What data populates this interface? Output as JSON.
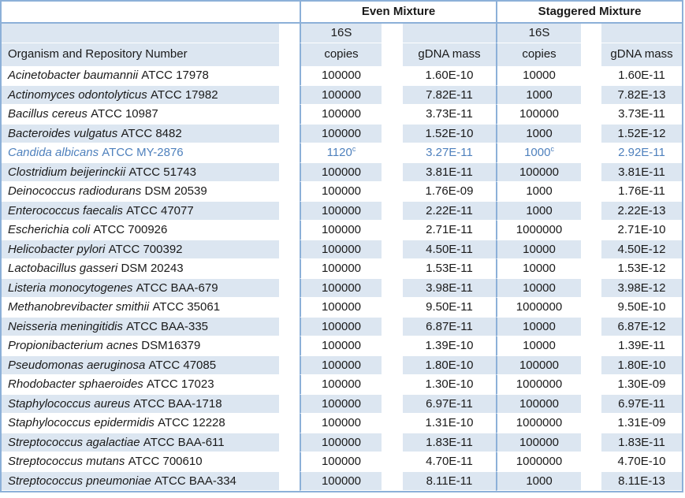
{
  "colors": {
    "border": "#8cb0d8",
    "row_alt": "#dce6f1",
    "highlight_text": "#4f81bd",
    "text": "#1a1a1a"
  },
  "table": {
    "groups": {
      "even": "Even Mixture",
      "staggered": "Staggered Mixture"
    },
    "sub": {
      "s16": "16S",
      "copies": "copies",
      "gdna": "gDNA mass"
    },
    "organism_header": "Organism and Repository Number",
    "footnote_marker": "c",
    "rows": [
      {
        "species": "Acinetobacter baumannii",
        "repo": "ATCC 17978",
        "even_copies": "100000",
        "even_gdna": "1.60E-10",
        "stag_copies": "10000",
        "stag_gdna": "1.60E-11"
      },
      {
        "species": "Actinomyces odontolyticus",
        "repo": "ATCC 17982",
        "even_copies": "100000",
        "even_gdna": "7.82E-11",
        "stag_copies": "1000",
        "stag_gdna": "7.82E-13"
      },
      {
        "species": "Bacillus cereus",
        "repo": "ATCC 10987",
        "even_copies": "100000",
        "even_gdna": "3.73E-11",
        "stag_copies": "100000",
        "stag_gdna": "3.73E-11"
      },
      {
        "species": "Bacteroides vulgatus",
        "repo": "ATCC 8482",
        "even_copies": "100000",
        "even_gdna": "1.52E-10",
        "stag_copies": "1000",
        "stag_gdna": "1.52E-12"
      },
      {
        "species": "Candida albicans",
        "repo": "ATCC MY-2876",
        "even_copies": "1120",
        "even_sup": "c",
        "even_gdna": "3.27E-11",
        "stag_copies": "1000",
        "stag_sup": "c",
        "stag_gdna": "2.92E-11",
        "highlight": true
      },
      {
        "species": "Clostridium beijerinckii",
        "repo": "ATCC 51743",
        "even_copies": "100000",
        "even_gdna": "3.81E-11",
        "stag_copies": "100000",
        "stag_gdna": "3.81E-11"
      },
      {
        "species": "Deinococcus radiodurans",
        "repo": "DSM 20539",
        "even_copies": "100000",
        "even_gdna": "1.76E-09",
        "stag_copies": "1000",
        "stag_gdna": "1.76E-11"
      },
      {
        "species": "Enterococcus faecalis",
        "repo": "ATCC 47077",
        "even_copies": "100000",
        "even_gdna": "2.22E-11",
        "stag_copies": "1000",
        "stag_gdna": "2.22E-13"
      },
      {
        "species": "Escherichia coli",
        "repo": "ATCC 700926",
        "even_copies": "100000",
        "even_gdna": "2.71E-11",
        "stag_copies": "1000000",
        "stag_gdna": "2.71E-10"
      },
      {
        "species": "Helicobacter pylori",
        "repo": "ATCC 700392",
        "even_copies": "100000",
        "even_gdna": "4.50E-11",
        "stag_copies": "10000",
        "stag_gdna": "4.50E-12"
      },
      {
        "species": "Lactobacillus gasseri",
        "repo": "DSM 20243",
        "even_copies": "100000",
        "even_gdna": "1.53E-11",
        "stag_copies": "10000",
        "stag_gdna": "1.53E-12"
      },
      {
        "species": "Listeria monocytogenes",
        "repo": "ATCC BAA-679",
        "even_copies": "100000",
        "even_gdna": "3.98E-11",
        "stag_copies": "10000",
        "stag_gdna": "3.98E-12"
      },
      {
        "species": "Methanobrevibacter smithii",
        "repo": "ATCC 35061",
        "even_copies": "100000",
        "even_gdna": "9.50E-11",
        "stag_copies": "1000000",
        "stag_gdna": "9.50E-10"
      },
      {
        "species": "Neisseria meningitidis",
        "repo": "ATCC BAA-335",
        "even_copies": "100000",
        "even_gdna": "6.87E-11",
        "stag_copies": "10000",
        "stag_gdna": "6.87E-12"
      },
      {
        "species": "Propionibacterium acnes",
        "repo": "DSM16379",
        "even_copies": "100000",
        "even_gdna": "1.39E-10",
        "stag_copies": "10000",
        "stag_gdna": "1.39E-11"
      },
      {
        "species": "Pseudomonas aeruginosa",
        "repo": "ATCC 47085",
        "even_copies": "100000",
        "even_gdna": "1.80E-10",
        "stag_copies": "100000",
        "stag_gdna": "1.80E-10"
      },
      {
        "species": "Rhodobacter sphaeroides",
        "repo": "ATCC 17023",
        "even_copies": "100000",
        "even_gdna": "1.30E-10",
        "stag_copies": "1000000",
        "stag_gdna": "1.30E-09"
      },
      {
        "species": "Staphylococcus aureus",
        "repo": "ATCC BAA-1718",
        "even_copies": "100000",
        "even_gdna": "6.97E-11",
        "stag_copies": "100000",
        "stag_gdna": "6.97E-11"
      },
      {
        "species": "Staphylococcus epidermidis",
        "repo": "ATCC 12228",
        "even_copies": "100000",
        "even_gdna": "1.31E-10",
        "stag_copies": "1000000",
        "stag_gdna": "1.31E-09"
      },
      {
        "species": "Streptococcus agalactiae",
        "repo": "ATCC BAA-611",
        "even_copies": "100000",
        "even_gdna": "1.83E-11",
        "stag_copies": "100000",
        "stag_gdna": "1.83E-11"
      },
      {
        "species": "Streptococcus mutans",
        "repo": "ATCC 700610",
        "even_copies": "100000",
        "even_gdna": "4.70E-11",
        "stag_copies": "1000000",
        "stag_gdna": "4.70E-10"
      },
      {
        "species": "Streptococcus pneumoniae",
        "repo": "ATCC BAA-334",
        "even_copies": "100000",
        "even_gdna": "8.11E-11",
        "stag_copies": "1000",
        "stag_gdna": "8.11E-13"
      }
    ]
  }
}
